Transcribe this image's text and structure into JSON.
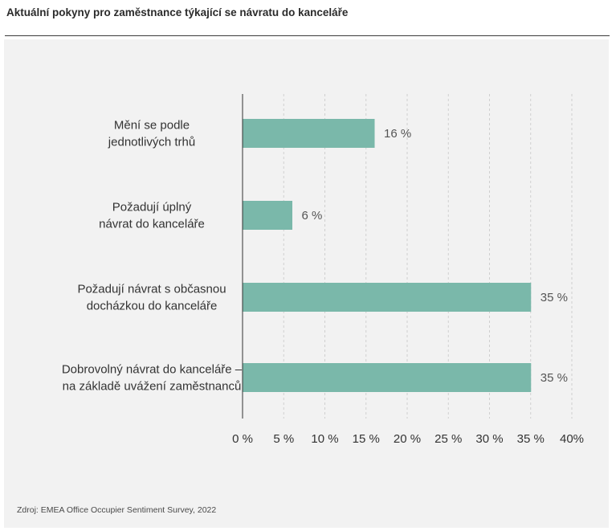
{
  "title": "Aktuální pokyny pro zaměstnance týkající se návratu do kanceláře",
  "source": "Zdroj: EMEA Office Occupier Sentiment Survey, 2022",
  "colors": {
    "bar": "#7ab8aa",
    "grid": "#cfcfcf",
    "axis": "#333333",
    "panel": "#f2f2f2"
  },
  "chart_data": {
    "type": "bar",
    "orientation": "horizontal",
    "categories": [
      [
        "Mění se podle",
        "jednotlivých trhů"
      ],
      [
        "Požadují úplný",
        "návrat do kanceláře"
      ],
      [
        "Požadují návrat s občasnou",
        "docházkou do kanceláře"
      ],
      [
        "Dobrovolný návrat do kanceláře –",
        "na základě uvážení zaměstnanců"
      ]
    ],
    "values": [
      16,
      6,
      35,
      35
    ],
    "value_labels": [
      "16 %",
      "6 %",
      "35 %",
      "35 %"
    ],
    "xlim": [
      0,
      40
    ],
    "ticks": [
      0,
      5,
      10,
      15,
      20,
      25,
      30,
      35,
      40
    ],
    "tick_labels": [
      "0 %",
      "5 %",
      "10 %",
      "15 %",
      "20 %",
      "25 %",
      "30 %",
      "35 %",
      "40%"
    ],
    "grid": "vertical dashed",
    "xlabel": "",
    "ylabel": ""
  }
}
